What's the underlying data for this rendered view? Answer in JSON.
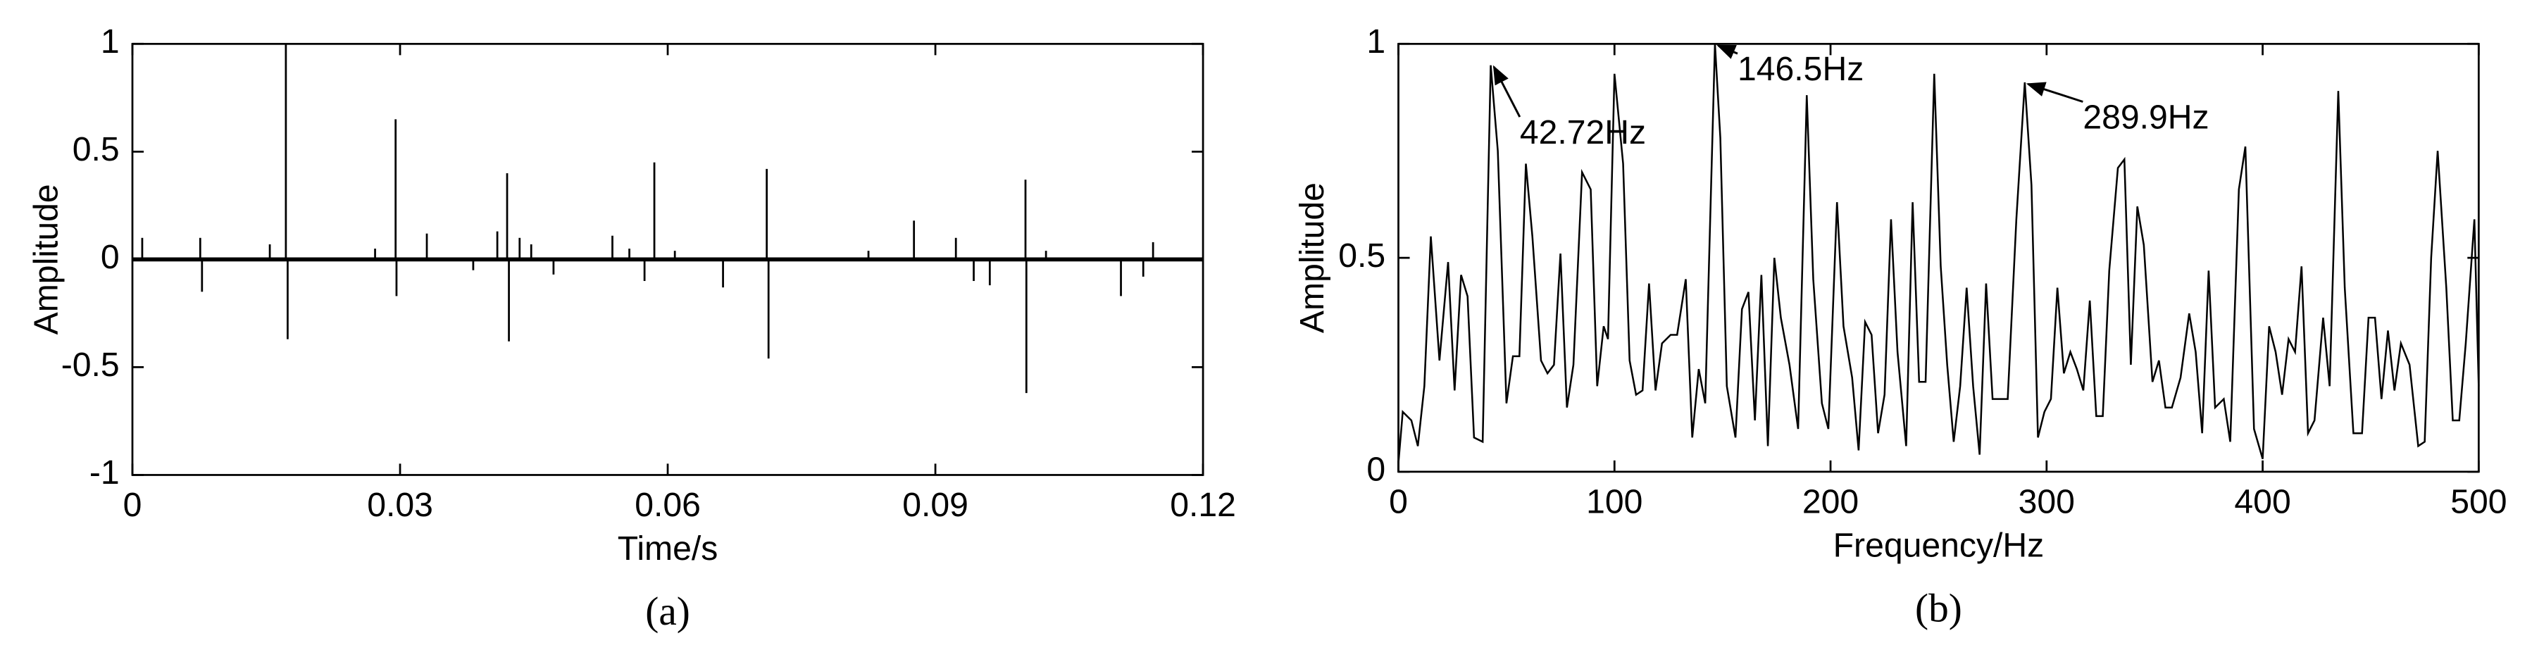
{
  "chart_data": [
    {
      "type": "stem",
      "caption": "(a)",
      "xlabel": "Time/s",
      "ylabel": "Amplitude",
      "xlim": [
        0,
        0.12
      ],
      "xticks": [
        0,
        0.03,
        0.06,
        0.09,
        0.12
      ],
      "ylim": [
        -1,
        1
      ],
      "yticks": [
        -1,
        -0.5,
        0,
        0.5,
        1
      ],
      "color": "#000000",
      "grid": false,
      "x": [
        0.0011,
        0.0076,
        0.0078,
        0.0154,
        0.0172,
        0.0174,
        0.0272,
        0.0295,
        0.0296,
        0.033,
        0.0382,
        0.0409,
        0.042,
        0.0422,
        0.0434,
        0.0447,
        0.0472,
        0.0538,
        0.0557,
        0.0574,
        0.0585,
        0.0608,
        0.0662,
        0.0711,
        0.0713,
        0.0825,
        0.0876,
        0.0923,
        0.0943,
        0.0961,
        0.1001,
        0.1002,
        0.1024,
        0.1108,
        0.1133,
        0.1144
      ],
      "values": [
        0.1,
        0.1,
        -0.15,
        0.07,
        1.0,
        -0.37,
        0.05,
        0.65,
        -0.17,
        0.12,
        -0.05,
        0.13,
        0.4,
        -0.38,
        0.1,
        0.07,
        -0.07,
        0.11,
        0.05,
        -0.1,
        0.45,
        0.04,
        -0.13,
        0.42,
        -0.46,
        0.04,
        0.18,
        0.1,
        -0.1,
        -0.12,
        0.37,
        -0.62,
        0.04,
        -0.17,
        -0.08,
        0.08
      ]
    },
    {
      "type": "line",
      "caption": "(b)",
      "xlabel": "Frequency/Hz",
      "ylabel": "Amplitude",
      "xlim": [
        0,
        500
      ],
      "xticks": [
        0,
        100,
        200,
        300,
        400,
        500
      ],
      "ylim": [
        0,
        1
      ],
      "yticks": [
        0,
        0.5,
        1
      ],
      "color": "#000000",
      "grid": false,
      "x": [
        0,
        2,
        6,
        9,
        12,
        15,
        19,
        23,
        26,
        29,
        32,
        35,
        39,
        42.72,
        46,
        50,
        53,
        56,
        59,
        62,
        66,
        69,
        72,
        75,
        78,
        81,
        85,
        89,
        92,
        95,
        97,
        100,
        104,
        107,
        110,
        113,
        116,
        119,
        122,
        126,
        129,
        133,
        136,
        139,
        142,
        146.5,
        149,
        152,
        156,
        159,
        162,
        165,
        168,
        171,
        174,
        177,
        181,
        185,
        189,
        192,
        196,
        199,
        203,
        206,
        210,
        213,
        216,
        219,
        222,
        225,
        228,
        231,
        235,
        238,
        241,
        244,
        248,
        251,
        254,
        257,
        260,
        263,
        266,
        269,
        272,
        275,
        278,
        282,
        286,
        289.9,
        293,
        296,
        299,
        302,
        305,
        308,
        311,
        314,
        317,
        320,
        323,
        326,
        329,
        333,
        336,
        339,
        342,
        345,
        349,
        352,
        355,
        358,
        362,
        366,
        369,
        372,
        375,
        378,
        382,
        385,
        389,
        392,
        396,
        400,
        403,
        406,
        409,
        412,
        415,
        418,
        421,
        424,
        428,
        431,
        435,
        438,
        442,
        446,
        449,
        452,
        455,
        458,
        461,
        464,
        468,
        472,
        475,
        478,
        481,
        485,
        488,
        491,
        494,
        498,
        500
      ],
      "values": [
        0.02,
        0.14,
        0.12,
        0.06,
        0.2,
        0.55,
        0.26,
        0.49,
        0.19,
        0.46,
        0.41,
        0.08,
        0.07,
        0.95,
        0.75,
        0.16,
        0.27,
        0.27,
        0.72,
        0.55,
        0.26,
        0.23,
        0.25,
        0.51,
        0.15,
        0.25,
        0.7,
        0.66,
        0.2,
        0.34,
        0.31,
        0.93,
        0.72,
        0.26,
        0.18,
        0.19,
        0.44,
        0.19,
        0.3,
        0.32,
        0.32,
        0.45,
        0.08,
        0.24,
        0.16,
        1.0,
        0.78,
        0.2,
        0.08,
        0.38,
        0.42,
        0.12,
        0.46,
        0.06,
        0.5,
        0.36,
        0.25,
        0.1,
        0.88,
        0.45,
        0.16,
        0.1,
        0.63,
        0.34,
        0.22,
        0.05,
        0.35,
        0.32,
        0.09,
        0.18,
        0.59,
        0.28,
        0.06,
        0.63,
        0.21,
        0.21,
        0.93,
        0.48,
        0.25,
        0.07,
        0.2,
        0.43,
        0.2,
        0.04,
        0.44,
        0.17,
        0.17,
        0.17,
        0.59,
        0.91,
        0.67,
        0.08,
        0.14,
        0.17,
        0.43,
        0.23,
        0.28,
        0.24,
        0.19,
        0.4,
        0.13,
        0.13,
        0.47,
        0.71,
        0.73,
        0.25,
        0.62,
        0.53,
        0.21,
        0.26,
        0.15,
        0.15,
        0.22,
        0.37,
        0.28,
        0.09,
        0.47,
        0.15,
        0.17,
        0.07,
        0.66,
        0.76,
        0.1,
        0.03,
        0.34,
        0.28,
        0.18,
        0.31,
        0.28,
        0.48,
        0.09,
        0.12,
        0.36,
        0.2,
        0.89,
        0.43,
        0.09,
        0.09,
        0.36,
        0.36,
        0.17,
        0.33,
        0.19,
        0.3,
        0.25,
        0.06,
        0.07,
        0.5,
        0.75,
        0.43,
        0.12,
        0.12,
        0.3,
        0.59,
        0.2
      ],
      "annotations": [
        {
          "text": "42.72Hz",
          "x": 42.72,
          "y": 0.95
        },
        {
          "text": "146.5Hz",
          "x": 146.5,
          "y": 1.0
        },
        {
          "text": "289.9Hz",
          "x": 289.9,
          "y": 0.91
        }
      ]
    }
  ]
}
